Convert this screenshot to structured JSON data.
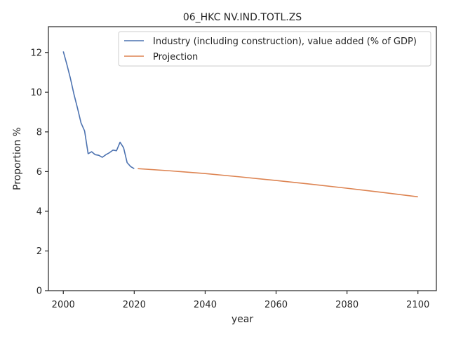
{
  "chart_data": {
    "type": "line",
    "title": "06_HKC NV.IND.TOTL.ZS",
    "xlabel": "year",
    "ylabel": "Proportion %",
    "xlim": [
      1995.8,
      2105.2
    ],
    "ylim": [
      0,
      13.3
    ],
    "xticks": [
      2000,
      2020,
      2040,
      2060,
      2080,
      2100
    ],
    "yticks": [
      0,
      2,
      4,
      6,
      8,
      10,
      12
    ],
    "grid": false,
    "legend_position": "top-right",
    "series": [
      {
        "name": "Industry (including construction), value added (% of GDP)",
        "color": "#4c72b0",
        "x": [
          2000,
          2001,
          2002,
          2003,
          2004,
          2005,
          2006,
          2007,
          2008,
          2009,
          2010,
          2011,
          2012,
          2013,
          2014,
          2015,
          2016,
          2017,
          2018,
          2019,
          2020
        ],
        "y": [
          12.05,
          11.4,
          10.7,
          9.9,
          9.2,
          8.45,
          8.05,
          6.9,
          7.0,
          6.85,
          6.82,
          6.72,
          6.85,
          6.95,
          7.08,
          7.05,
          7.48,
          7.2,
          6.45,
          6.25,
          6.15
        ]
      },
      {
        "name": "Projection",
        "color": "#dd8452",
        "x": [
          2021,
          2030,
          2040,
          2050,
          2060,
          2070,
          2080,
          2090,
          2100
        ],
        "y": [
          6.15,
          6.04,
          5.9,
          5.73,
          5.55,
          5.36,
          5.16,
          4.95,
          4.73
        ]
      }
    ]
  }
}
